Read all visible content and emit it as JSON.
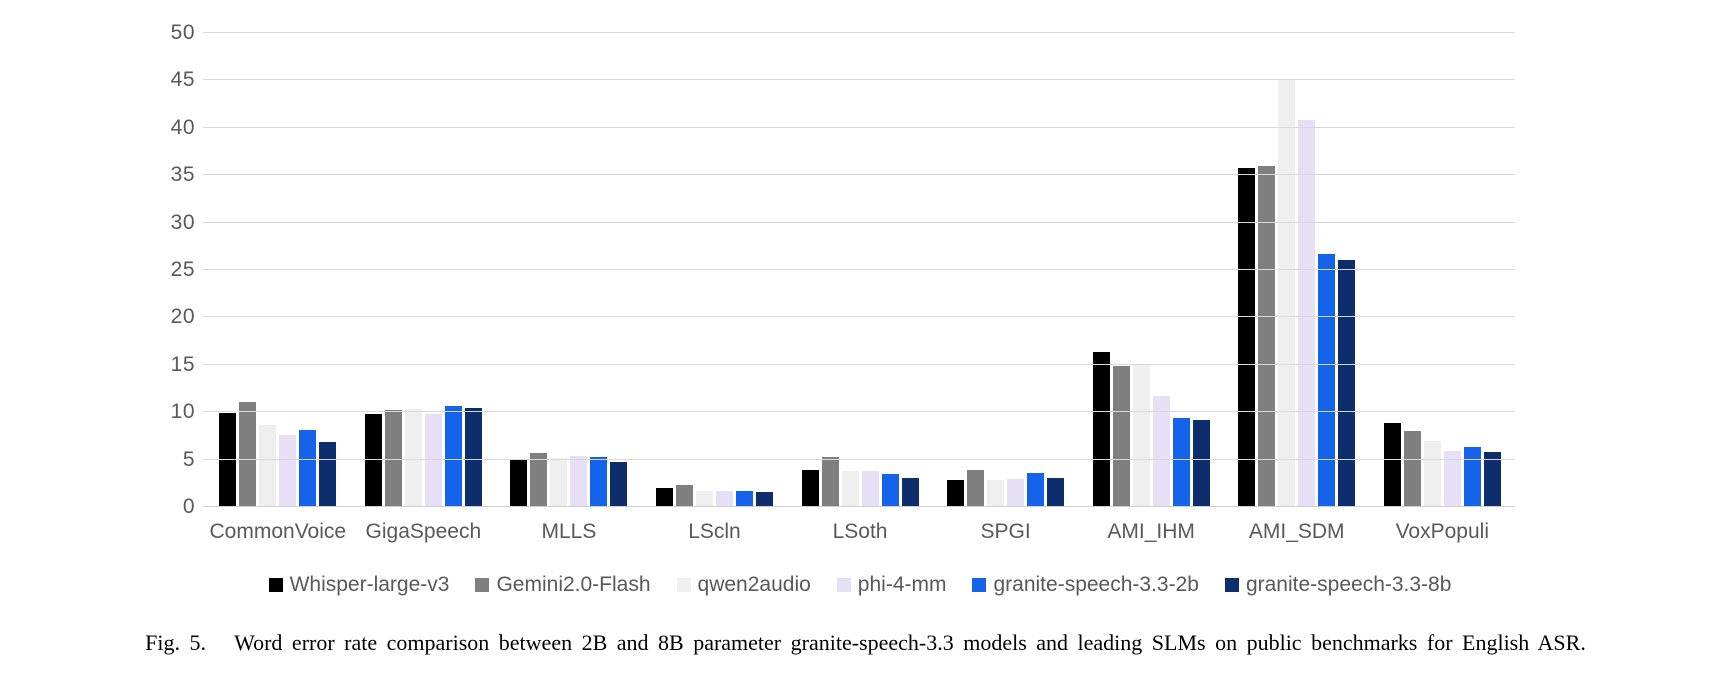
{
  "figure": {
    "caption": "Fig. 5.   Word error rate comparison between 2B and 8B parameter granite-speech-3.3 models and leading SLMs on public benchmarks for English ASR."
  },
  "chart_data": {
    "type": "bar",
    "title": "",
    "xlabel": "",
    "ylabel": "",
    "ylim": [
      0,
      50
    ],
    "ytick_step": 5,
    "grid": true,
    "legend_position": "bottom",
    "categories": [
      "CommonVoice",
      "GigaSpeech",
      "MLLS",
      "LScln",
      "LSoth",
      "SPGI",
      "AMI_IHM",
      "AMI_SDM",
      "VoxPopuli"
    ],
    "series": [
      {
        "name": "Whisper-large-v3",
        "color": "#000000",
        "values": [
          9.9,
          9.8,
          5.0,
          2.0,
          3.9,
          2.9,
          16.3,
          35.8,
          8.9
        ]
      },
      {
        "name": "Gemini2.0-Flash",
        "color": "#7f7f7f",
        "values": [
          11.1,
          10.2,
          5.7,
          2.3,
          5.3,
          3.9,
          14.9,
          36.0,
          8.0
        ]
      },
      {
        "name": "qwen2audio",
        "color": "#efefef",
        "values": [
          8.6,
          10.3,
          5.2,
          1.7,
          3.8,
          2.9,
          15.0,
          45.2,
          7.0
        ]
      },
      {
        "name": "phi-4-mm",
        "color": "#e7dff5",
        "values": [
          7.6,
          9.8,
          5.4,
          1.7,
          3.8,
          3.0,
          11.7,
          40.8,
          5.9
        ]
      },
      {
        "name": "granite-speech-3.3-2b",
        "color": "#1563eb",
        "values": [
          8.1,
          10.7,
          5.3,
          1.7,
          3.5,
          3.6,
          9.4,
          26.7,
          6.3
        ]
      },
      {
        "name": "granite-speech-3.3-8b",
        "color": "#0d2d6c",
        "values": [
          6.9,
          10.4,
          4.7,
          1.6,
          3.1,
          3.1,
          9.2,
          26.1,
          5.8
        ]
      }
    ],
    "style": {
      "gridline_color": "#d9d9d9",
      "tick_label_color": "#595959",
      "background": "#ffffff"
    }
  }
}
